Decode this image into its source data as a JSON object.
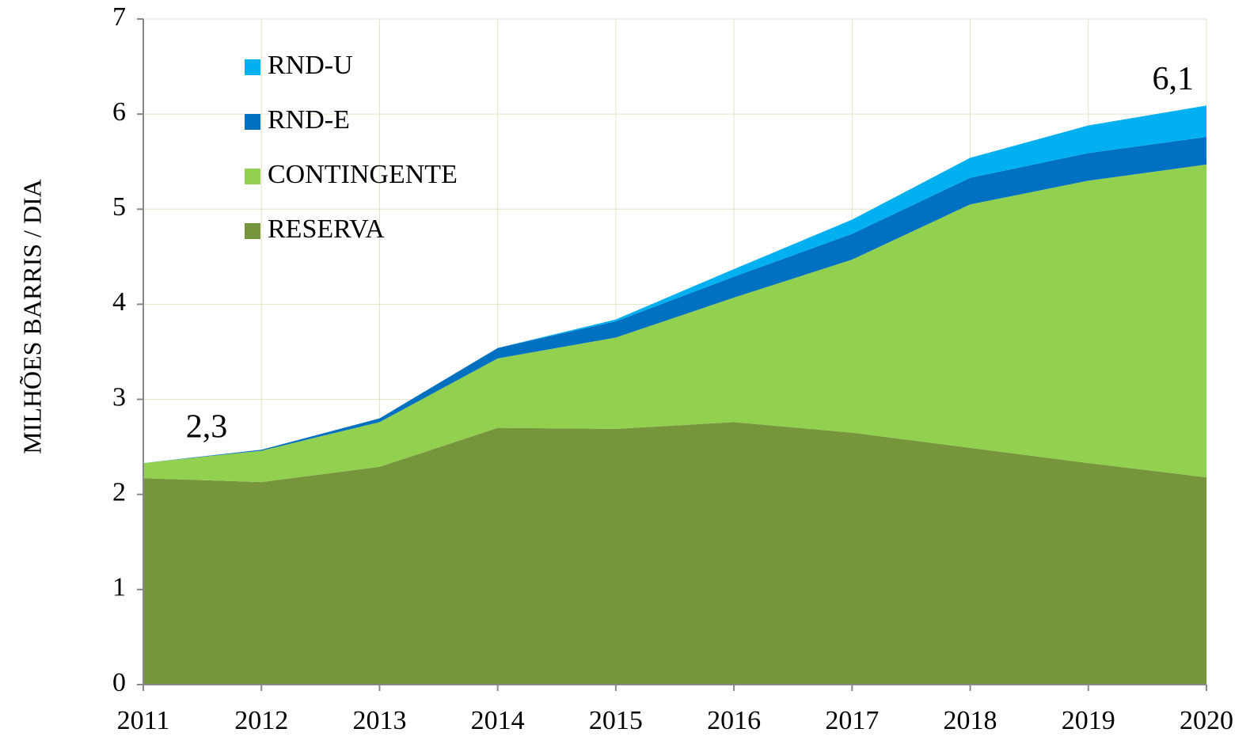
{
  "chart_data": {
    "type": "stacked_area",
    "ylabel": "MILHÕES BARRIS / DIA",
    "categories": [
      "2011",
      "2012",
      "2013",
      "2014",
      "2015",
      "2016",
      "2017",
      "2018",
      "2019",
      "2020"
    ],
    "series": [
      {
        "name": "RESERVA",
        "color": "#77963b",
        "values": [
          2.17,
          2.13,
          2.29,
          2.7,
          2.69,
          2.76,
          2.65,
          2.49,
          2.33,
          2.18
        ]
      },
      {
        "name": "CONTINGENTE",
        "color": "#92d050",
        "values": [
          0.16,
          0.33,
          0.47,
          0.73,
          0.96,
          1.31,
          1.82,
          2.56,
          2.97,
          3.29
        ]
      },
      {
        "name": "RND-E",
        "color": "#0070c0",
        "values": [
          0,
          0.01,
          0.04,
          0.11,
          0.17,
          0.22,
          0.27,
          0.28,
          0.29,
          0.29
        ]
      },
      {
        "name": "RND-U",
        "color": "#00b0f0",
        "values": [
          0,
          0,
          0,
          0,
          0.02,
          0.08,
          0.15,
          0.21,
          0.29,
          0.33
        ]
      }
    ],
    "annotations": [
      "2,3",
      "6,1"
    ],
    "annotation_color": "#1f7bc4",
    "ylim": [
      0,
      7
    ],
    "yticks": [
      0,
      1,
      2,
      3,
      4,
      5,
      6,
      7
    ],
    "grid": true,
    "legend": "upper left"
  }
}
